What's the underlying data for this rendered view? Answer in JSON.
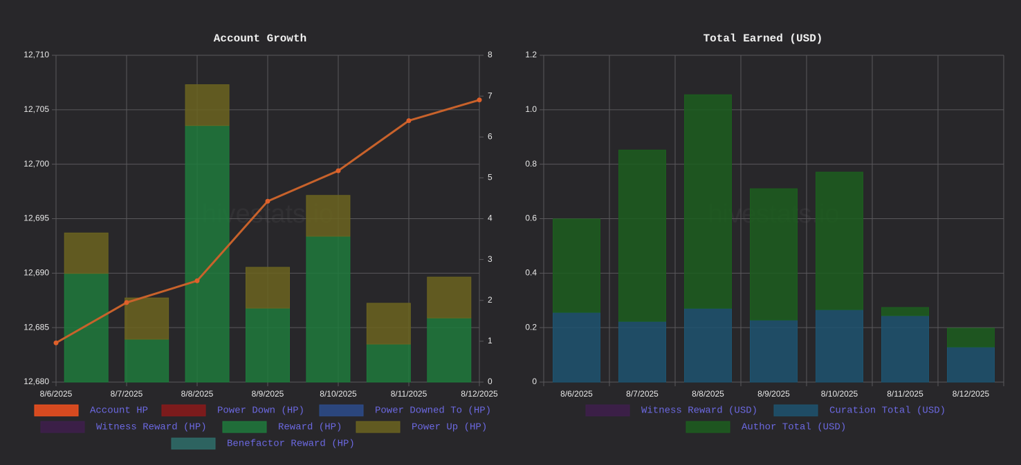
{
  "chart_data": [
    {
      "type": "bar",
      "title": "Account Growth",
      "watermark": "hivestats.io",
      "categories": [
        "8/6/2025",
        "8/7/2025",
        "8/8/2025",
        "8/9/2025",
        "8/10/2025",
        "8/11/2025",
        "8/12/2025"
      ],
      "ylim": [
        12680,
        12710
      ],
      "yticks": [
        {
          "value": 12680,
          "label": "12,680"
        },
        {
          "value": 12685,
          "label": "12,685"
        },
        {
          "value": 12690,
          "label": "12,690"
        },
        {
          "value": 12695,
          "label": "12,695"
        },
        {
          "value": 12700,
          "label": "12,700"
        },
        {
          "value": 12705,
          "label": "12,705"
        },
        {
          "value": 12710,
          "label": "12,710"
        }
      ],
      "y2lim": [
        0,
        8
      ],
      "y2ticks": [
        0,
        1,
        2,
        3,
        4,
        5,
        6,
        7,
        8
      ],
      "grid": true,
      "series": [
        {
          "name": "Account HP",
          "type": "line",
          "color": "#f4511e",
          "values": [
            12683.6,
            12687.3,
            12689.3,
            12696.6,
            12699.4,
            12704.0,
            12705.9
          ]
        },
        {
          "name": "Power Down (HP)",
          "type": "bar",
          "axis": "y2",
          "color": "#8b1a1a",
          "values": [
            0,
            0,
            0,
            0,
            0,
            0,
            0
          ]
        },
        {
          "name": "Power Downed To (HP)",
          "type": "bar",
          "axis": "y2",
          "color": "#2c4c8c",
          "values": [
            0,
            0,
            0,
            0,
            0,
            0,
            0
          ]
        },
        {
          "name": "Witness Reward (HP)",
          "type": "bar",
          "axis": "y2",
          "color": "#3e1f4c",
          "values": [
            0,
            0,
            0,
            0,
            0,
            0,
            0
          ]
        },
        {
          "name": "Reward (HP)",
          "type": "bar",
          "axis": "y2",
          "color": "#1e7a3c",
          "values": [
            2.66,
            1.05,
            6.28,
            1.81,
            3.57,
            0.93,
            1.57
          ]
        },
        {
          "name": "Power Up (HP)",
          "type": "bar",
          "axis": "y2",
          "color": "#6b6420",
          "values": [
            0.99,
            1.01,
            1.0,
            1.0,
            1.0,
            1.0,
            1.0
          ]
        },
        {
          "name": "Benefactor Reward (HP)",
          "type": "bar",
          "axis": "y2",
          "color": "#2e6e6a",
          "values": [
            0,
            0,
            0,
            0,
            0,
            0,
            0
          ]
        }
      ]
    },
    {
      "type": "bar",
      "title": "Total Earned (USD)",
      "watermark": "hivestats.io",
      "categories": [
        "8/6/2025",
        "8/7/2025",
        "8/8/2025",
        "8/9/2025",
        "8/10/2025",
        "8/11/2025",
        "8/12/2025"
      ],
      "ylim": [
        0,
        1.2
      ],
      "yticks": [
        0,
        0.2,
        0.4,
        0.6,
        0.8,
        {
          "value": 1,
          "label": "1.0"
        },
        1.2
      ],
      "grid": true,
      "series": [
        {
          "name": "Witness Reward (USD)",
          "type": "bar",
          "color": "#3e1f4c",
          "values": [
            0,
            0,
            0,
            0,
            0,
            0,
            0
          ]
        },
        {
          "name": "Curation Total (USD)",
          "type": "bar",
          "color": "#1d5470",
          "values": [
            0.256,
            0.223,
            0.271,
            0.228,
            0.266,
            0.244,
            0.129
          ]
        },
        {
          "name": "Author Total (USD)",
          "type": "bar",
          "color": "#1c5e1e",
          "values": [
            0.343,
            0.629,
            0.784,
            0.482,
            0.505,
            0.03,
            0.069
          ]
        }
      ]
    }
  ]
}
